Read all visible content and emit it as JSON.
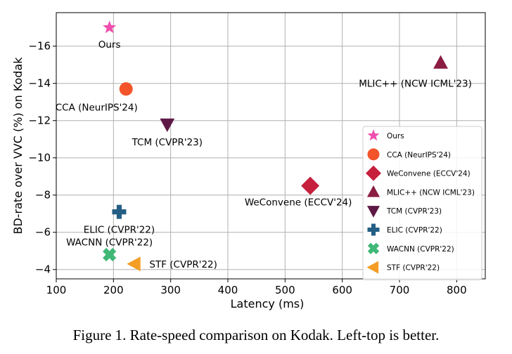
{
  "caption": "Figure 1. Rate-speed comparison on Kodak. Left-top is better.",
  "chart_data": {
    "type": "scatter",
    "title": "",
    "xlabel": "Latency (ms)",
    "ylabel": "BD-rate over VVC (%) on Kodak",
    "xlim": [
      100,
      850
    ],
    "ylim": [
      -3.5,
      -17.8
    ],
    "y_axis_inverted": true,
    "xticks": [
      100,
      200,
      300,
      400,
      500,
      600,
      700,
      800
    ],
    "yticks": [
      -4,
      -6,
      -8,
      -10,
      -12,
      -14,
      -16
    ],
    "x_tick_labels": [
      "100",
      "200",
      "300",
      "400",
      "500",
      "600",
      "700",
      "800"
    ],
    "y_tick_labels": [
      "−4",
      "−6",
      "−8",
      "−10",
      "−12",
      "−14",
      "−16"
    ],
    "grid": true,
    "legend_position": "lower-right",
    "series": [
      {
        "name": "Ours",
        "label": "Ours",
        "x": 193,
        "y": -17.0,
        "marker": "star",
        "color": "#f04eae"
      },
      {
        "name": "CCA (NeurIPS'24)",
        "label": "CCA (NeurIPS'24)",
        "x": 222,
        "y": -13.7,
        "marker": "circle",
        "color": "#f4542a"
      },
      {
        "name": "WeConvene (ECCV'24)",
        "label": "WeConvene (ECCV'24)",
        "x": 544,
        "y": -8.5,
        "marker": "diamond",
        "color": "#c6203d"
      },
      {
        "name": "MLIC++ (NCW ICML'23)",
        "label": "MLIC++ (NCW ICML'23)",
        "x": 772,
        "y": -15.1,
        "marker": "triangle-up",
        "color": "#8b1c42"
      },
      {
        "name": "TCM (CVPR'23)",
        "label": "TCM (CVPR'23)",
        "x": 294,
        "y": -11.8,
        "marker": "triangle-down",
        "color": "#5e1845"
      },
      {
        "name": "ELIC (CVPR'22)",
        "label": "ELIC (CVPR'22)",
        "x": 210,
        "y": -7.1,
        "marker": "plus",
        "color": "#245e84"
      },
      {
        "name": "WACNN (CVPR'22)",
        "label": "WACNN (CVPR'22)",
        "x": 193,
        "y": -4.8,
        "marker": "x",
        "color": "#3fb877"
      },
      {
        "name": "STF (CVPR'22)",
        "label": "STF (CVPR'22)",
        "x": 237,
        "y": -4.3,
        "marker": "triangle-left",
        "color": "#f39d24"
      }
    ]
  }
}
